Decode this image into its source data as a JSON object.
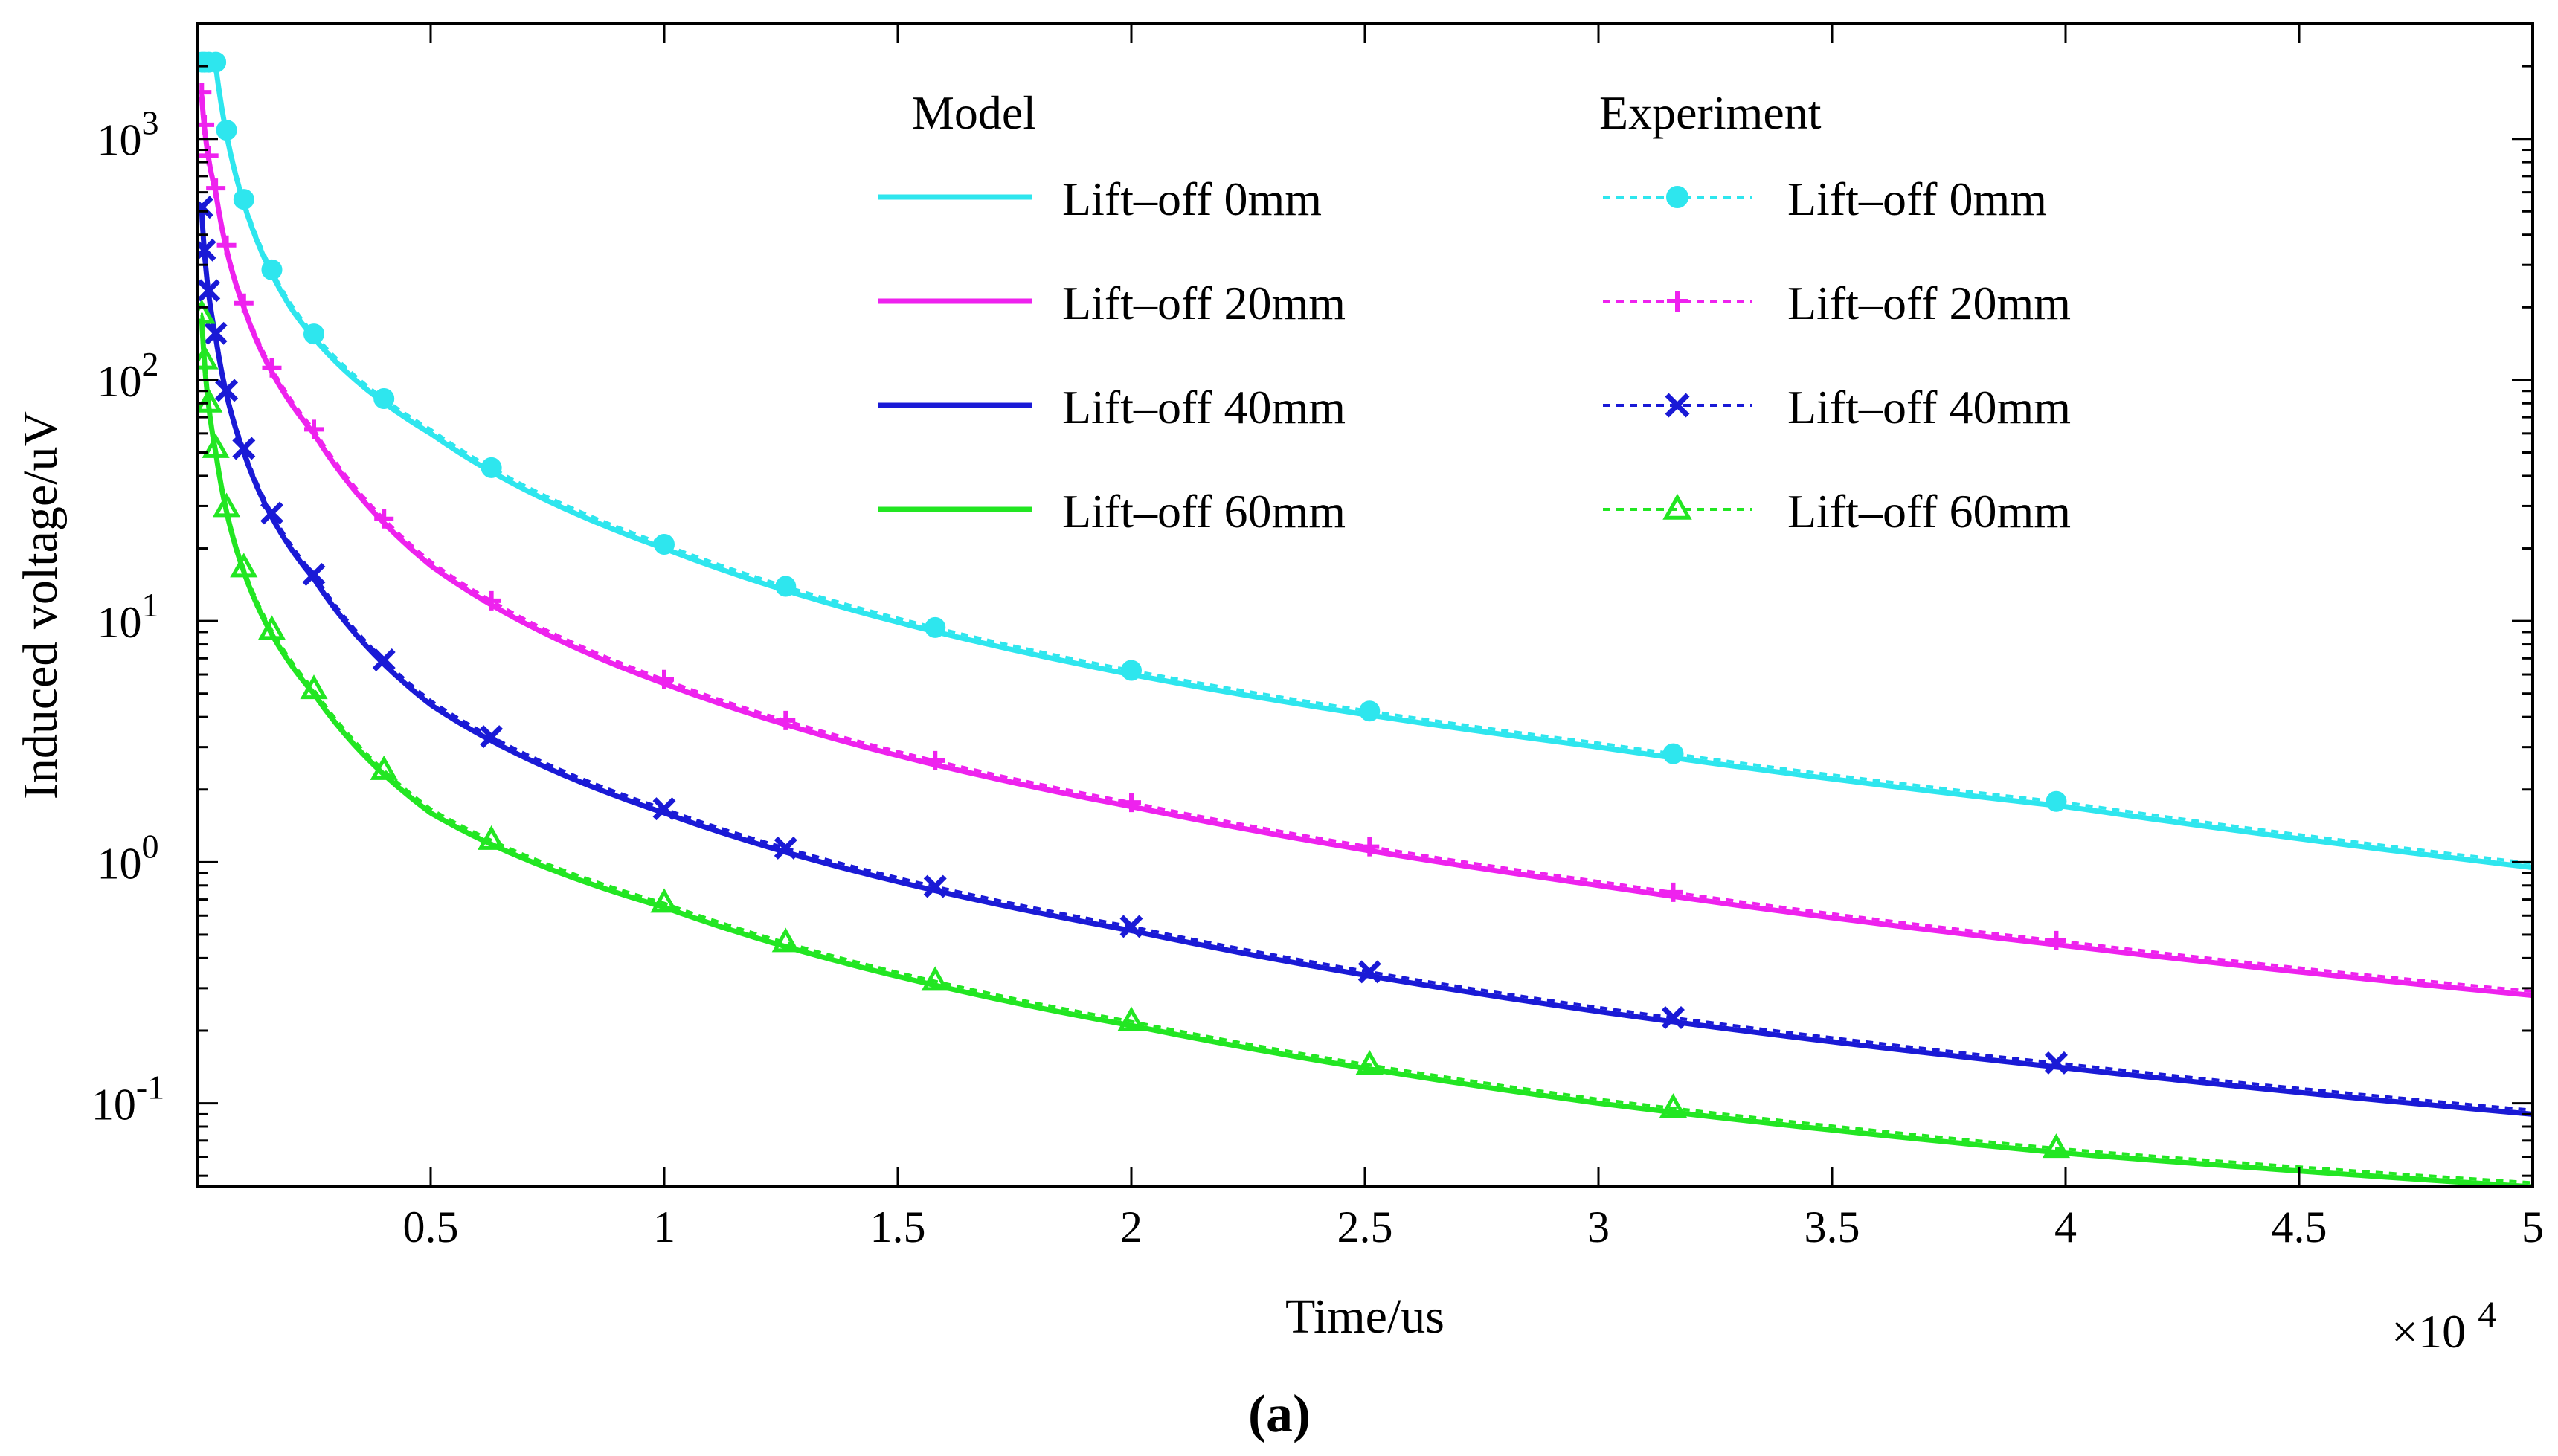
{
  "figure": {
    "caption": "(a)"
  },
  "chart_data": {
    "type": "line",
    "xlabel": "Time/us",
    "ylabel": "Induced voltage/uV",
    "x_multiplier_label": "×10",
    "x_multiplier_exp": "4",
    "xlim": [
      0,
      50000
    ],
    "ylim": [
      0.045,
      3000
    ],
    "yscale": "log",
    "grid": false,
    "legend_placement": "top-right",
    "x_ticks": [
      5000,
      10000,
      15000,
      20000,
      25000,
      30000,
      35000,
      40000,
      45000,
      50000
    ],
    "x_tick_labels": [
      "0.5",
      "1",
      "1.5",
      "2",
      "2.5",
      "3",
      "3.5",
      "4",
      "4.5",
      "5"
    ],
    "y_ticks": [
      {
        "value": 0.1,
        "base": "10",
        "exp": "-1"
      },
      {
        "value": 1,
        "base": "10",
        "exp": "0"
      },
      {
        "value": 10,
        "base": "10",
        "exp": "1"
      },
      {
        "value": 100,
        "base": "10",
        "exp": "2"
      },
      {
        "value": 1000,
        "base": "10",
        "exp": "3"
      }
    ],
    "legend": {
      "model_title": "Model",
      "experiment_title": "Experiment"
    },
    "curves": [
      {
        "label": "Lift–off 0mm",
        "color": "#2ee6ee",
        "marker": "circle",
        "points": [
          [
            400,
            2000
          ],
          [
            2000,
            200
          ],
          [
            5000,
            60
          ],
          [
            10000,
            20
          ],
          [
            20000,
            6
          ],
          [
            30000,
            3
          ],
          [
            40000,
            1.7
          ],
          [
            50000,
            0.95
          ]
        ]
      },
      {
        "label": "Lift–off 20mm",
        "color": "#ee22ee",
        "marker": "plus",
        "points": [
          [
            100,
            1500
          ],
          [
            400,
            600
          ],
          [
            1000,
            200
          ],
          [
            2500,
            60
          ],
          [
            5000,
            17
          ],
          [
            10000,
            5.5
          ],
          [
            20000,
            1.7
          ],
          [
            30000,
            0.8
          ],
          [
            40000,
            0.45
          ],
          [
            50000,
            0.28
          ]
        ]
      },
      {
        "label": "Lift–off 40mm",
        "color": "#1a1ad6",
        "marker": "x",
        "points": [
          [
            100,
            500
          ],
          [
            400,
            150
          ],
          [
            1000,
            50
          ],
          [
            2500,
            15
          ],
          [
            5000,
            4.5
          ],
          [
            10000,
            1.6
          ],
          [
            20000,
            0.52
          ],
          [
            30000,
            0.24
          ],
          [
            40000,
            0.14
          ],
          [
            50000,
            0.09
          ]
        ]
      },
      {
        "label": "Lift–off 60mm",
        "color": "#22e622",
        "marker": "triangle",
        "points": [
          [
            100,
            180
          ],
          [
            400,
            50
          ],
          [
            1000,
            16
          ],
          [
            2500,
            5
          ],
          [
            5000,
            1.6
          ],
          [
            10000,
            0.65
          ],
          [
            20000,
            0.21
          ],
          [
            30000,
            0.1
          ],
          [
            40000,
            0.062
          ],
          [
            50000,
            0.045
          ]
        ]
      }
    ]
  }
}
